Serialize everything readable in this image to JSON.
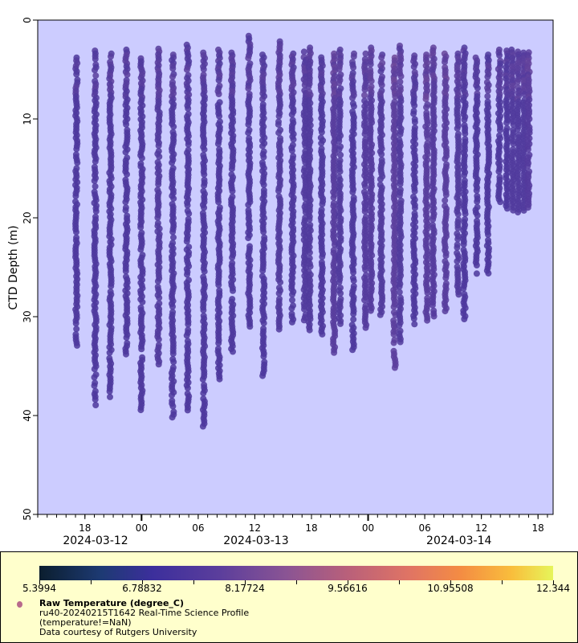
{
  "chart_data": {
    "type": "scatter",
    "title": "",
    "xlabel": "",
    "ylabel": "CTD Depth (m)",
    "y_inverted": true,
    "ylim": [
      0,
      50
    ],
    "yticks": [
      "0",
      "10",
      "20",
      "30",
      "40",
      "50"
    ],
    "xlim_hours_from_2024_03_12T00": [
      13.0,
      67.6
    ],
    "xticks": [
      {
        "hour": 18,
        "label": "18"
      },
      {
        "hour": 24,
        "label": "00"
      },
      {
        "hour": 30,
        "label": "06"
      },
      {
        "hour": 36,
        "label": "12"
      },
      {
        "hour": 42,
        "label": "18"
      },
      {
        "hour": 48,
        "label": "00"
      },
      {
        "hour": 54,
        "label": "06"
      },
      {
        "hour": 60,
        "label": "12"
      },
      {
        "hour": 66,
        "label": "18"
      }
    ],
    "date_labels": [
      {
        "hour": 17.0,
        "label": "2024-03-12"
      },
      {
        "hour": 34.0,
        "label": "2024-03-13"
      },
      {
        "hour": 55.5,
        "label": "2024-03-14"
      }
    ],
    "series_name": "Raw Temperature (degree_C)",
    "color_range": [
      5.3994,
      12.344
    ],
    "profiles": [
      {
        "hour": 17.1,
        "top": 3.8,
        "bottom": 33.0,
        "temp": 7.4
      },
      {
        "hour": 19.1,
        "top": 3.1,
        "bottom": 39.0,
        "temp": 7.4
      },
      {
        "hour": 20.7,
        "top": 3.4,
        "bottom": 38.2,
        "temp": 7.4
      },
      {
        "hour": 22.4,
        "top": 3.0,
        "bottom": 34.0,
        "temp": 7.4
      },
      {
        "hour": 24.0,
        "top": 3.6,
        "bottom": 39.7,
        "temp": 7.4
      },
      {
        "hour": 25.8,
        "top": 2.9,
        "bottom": 35.0,
        "temp": 7.5
      },
      {
        "hour": 27.3,
        "top": 3.5,
        "bottom": 40.3,
        "temp": 7.4
      },
      {
        "hour": 28.9,
        "top": 2.5,
        "bottom": 39.7,
        "temp": 7.4
      },
      {
        "hour": 30.6,
        "top": 3.3,
        "bottom": 41.2,
        "temp": 7.4
      },
      {
        "hour": 32.2,
        "top": 3.0,
        "bottom": 36.5,
        "temp": 7.4
      },
      {
        "hour": 33.6,
        "top": 3.3,
        "bottom": 33.7,
        "temp": 7.4
      },
      {
        "hour": 35.4,
        "top": 1.6,
        "bottom": 31.2,
        "temp": 7.4
      },
      {
        "hour": 36.9,
        "top": 3.5,
        "bottom": 36.4,
        "temp": 7.4
      },
      {
        "hour": 38.6,
        "top": 1.6,
        "bottom": 31.5,
        "temp": 7.5
      },
      {
        "hour": 40.0,
        "top": 3.4,
        "bottom": 30.6,
        "temp": 7.4
      },
      {
        "hour": 41.3,
        "top": 3.2,
        "bottom": 30.5,
        "temp": 7.5
      },
      {
        "hour": 41.8,
        "top": 2.8,
        "bottom": 31.4,
        "temp": 7.5
      },
      {
        "hour": 43.1,
        "top": 3.5,
        "bottom": 31.8,
        "temp": 7.4
      },
      {
        "hour": 44.4,
        "top": 3.4,
        "bottom": 33.7,
        "temp": 7.7
      },
      {
        "hour": 45.0,
        "top": 3.0,
        "bottom": 31.0,
        "temp": 7.5
      },
      {
        "hour": 46.4,
        "top": 3.4,
        "bottom": 33.6,
        "temp": 7.4
      },
      {
        "hour": 47.7,
        "top": 3.4,
        "bottom": 31.2,
        "temp": 7.6
      },
      {
        "hour": 48.3,
        "top": 2.8,
        "bottom": 29.5,
        "temp": 7.6
      },
      {
        "hour": 49.4,
        "top": 3.5,
        "bottom": 30.0,
        "temp": 7.5
      },
      {
        "hour": 50.8,
        "top": 3.8,
        "bottom": 35.3,
        "temp": 7.8
      },
      {
        "hour": 51.4,
        "top": 2.6,
        "bottom": 32.8,
        "temp": 7.5
      },
      {
        "hour": 52.9,
        "top": 3.6,
        "bottom": 31.0,
        "temp": 7.4
      },
      {
        "hour": 54.2,
        "top": 3.5,
        "bottom": 30.7,
        "temp": 7.7
      },
      {
        "hour": 54.9,
        "top": 2.8,
        "bottom": 30.0,
        "temp": 7.6
      },
      {
        "hour": 56.2,
        "top": 3.4,
        "bottom": 29.6,
        "temp": 7.7
      },
      {
        "hour": 57.5,
        "top": 3.4,
        "bottom": 28.0,
        "temp": 7.5
      },
      {
        "hour": 58.2,
        "top": 2.8,
        "bottom": 30.5,
        "temp": 7.4
      },
      {
        "hour": 59.5,
        "top": 3.8,
        "bottom": 25.8,
        "temp": 7.4
      },
      {
        "hour": 60.7,
        "top": 3.5,
        "bottom": 26.0,
        "temp": 7.4
      },
      {
        "hour": 61.9,
        "top": 3.0,
        "bottom": 18.5,
        "temp": 7.4
      },
      {
        "hour": 62.7,
        "top": 3.1,
        "bottom": 19.3,
        "temp": 7.4
      },
      {
        "hour": 63.3,
        "top": 3.0,
        "bottom": 19.5,
        "temp": 7.5
      },
      {
        "hour": 63.9,
        "top": 3.2,
        "bottom": 19.5,
        "temp": 7.5
      },
      {
        "hour": 64.5,
        "top": 3.3,
        "bottom": 19.4,
        "temp": 7.5
      },
      {
        "hour": 65.0,
        "top": 3.0,
        "bottom": 19.2,
        "temp": 7.6
      }
    ]
  },
  "legend": {
    "colorbar_ticks": [
      "5.3994",
      "6.78832",
      "8.17724",
      "9.56616",
      "10.95508",
      "12.344"
    ],
    "title": "Raw Temperature (degree_C)",
    "line1": "ru40-20240215T1642 Real-Time Science Profile",
    "line2": "(temperature!=NaN)",
    "line3": "Data courtesy of Rutgers University"
  }
}
